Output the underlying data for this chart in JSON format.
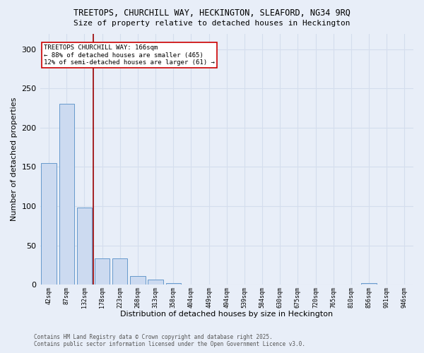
{
  "title_line1": "TREETOPS, CHURCHILL WAY, HECKINGTON, SLEAFORD, NG34 9RQ",
  "title_line2": "Size of property relative to detached houses in Heckington",
  "xlabel": "Distribution of detached houses by size in Heckington",
  "ylabel": "Number of detached properties",
  "bin_labels": [
    "42sqm",
    "87sqm",
    "132sqm",
    "178sqm",
    "223sqm",
    "268sqm",
    "313sqm",
    "358sqm",
    "404sqm",
    "449sqm",
    "494sqm",
    "539sqm",
    "584sqm",
    "630sqm",
    "675sqm",
    "720sqm",
    "765sqm",
    "810sqm",
    "856sqm",
    "901sqm",
    "946sqm"
  ],
  "bar_values": [
    155,
    230,
    98,
    33,
    33,
    11,
    6,
    2,
    0,
    0,
    0,
    0,
    0,
    0,
    0,
    0,
    0,
    0,
    2,
    0,
    0
  ],
  "bar_color": "#ccdaf0",
  "bar_edge_color": "#6699cc",
  "grid_color": "#d4dded",
  "background_color": "#e8eef8",
  "vline_color": "#990000",
  "annotation_text": "TREETOPS CHURCHILL WAY: 166sqm\n← 88% of detached houses are smaller (465)\n12% of semi-detached houses are larger (61) →",
  "annotation_box_color": "#ffffff",
  "annotation_border_color": "#cc0000",
  "ylim": [
    0,
    320
  ],
  "yticks": [
    0,
    50,
    100,
    150,
    200,
    250,
    300
  ],
  "footer_line1": "Contains HM Land Registry data © Crown copyright and database right 2025.",
  "footer_line2": "Contains public sector information licensed under the Open Government Licence v3.0."
}
